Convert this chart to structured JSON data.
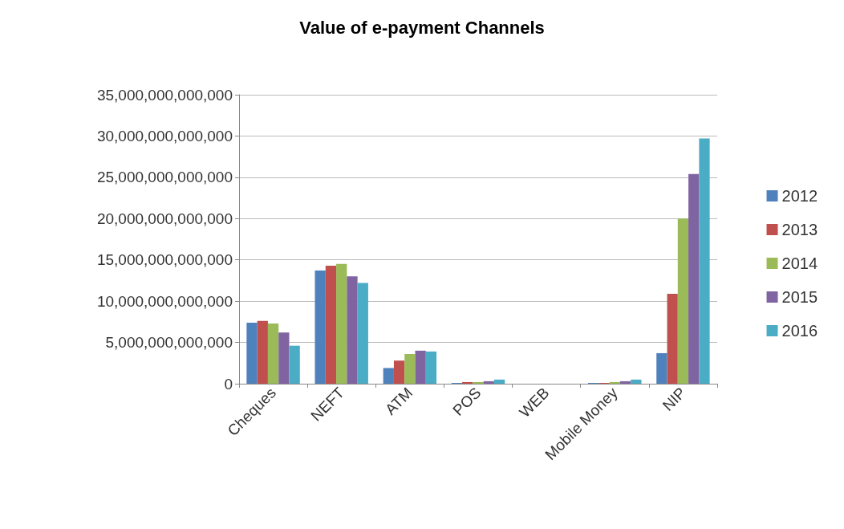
{
  "chart_data": {
    "type": "bar",
    "title": "Value of e-payment Channels",
    "categories": [
      "Cheques",
      "NEFT",
      "ATM",
      "POS",
      "WEB",
      "Mobile Money",
      "NIP"
    ],
    "series": [
      {
        "name": "2012",
        "color": "#4f81bd",
        "values": [
          7400000000000,
          13700000000000,
          1900000000000,
          100000000000,
          0,
          100000000000,
          3700000000000
        ]
      },
      {
        "name": "2013",
        "color": "#c0504d",
        "values": [
          7600000000000,
          14300000000000,
          2800000000000,
          200000000000,
          0,
          100000000000,
          10900000000000
        ]
      },
      {
        "name": "2014",
        "color": "#9bbb59",
        "values": [
          7300000000000,
          14500000000000,
          3600000000000,
          200000000000,
          0,
          200000000000,
          20000000000000
        ]
      },
      {
        "name": "2015",
        "color": "#8064a2",
        "values": [
          6200000000000,
          13000000000000,
          4000000000000,
          300000000000,
          0,
          300000000000,
          25400000000000
        ]
      },
      {
        "name": "2016",
        "color": "#4bacc6",
        "values": [
          4600000000000,
          12200000000000,
          3900000000000,
          500000000000,
          0,
          500000000000,
          29700000000000
        ]
      }
    ],
    "ylim": [
      0,
      35000000000000
    ],
    "yticks": [
      0,
      {
        "value": 5000000000000,
        "label": "5,000,000,000,000"
      },
      {
        "value": 10000000000000,
        "label": "10,000,000,000,000"
      },
      {
        "value": 15000000000000,
        "label": "15,000,000,000,000"
      },
      {
        "value": 20000000000000,
        "label": "20,000,000,000,000"
      },
      {
        "value": 25000000000000,
        "label": "25,000,000,000,000"
      },
      {
        "value": 30000000000000,
        "label": "30,000,000,000,000"
      },
      {
        "value": 35000000000000,
        "label": "35,000,000,000,000"
      }
    ],
    "grid": "y",
    "legend": "right"
  }
}
